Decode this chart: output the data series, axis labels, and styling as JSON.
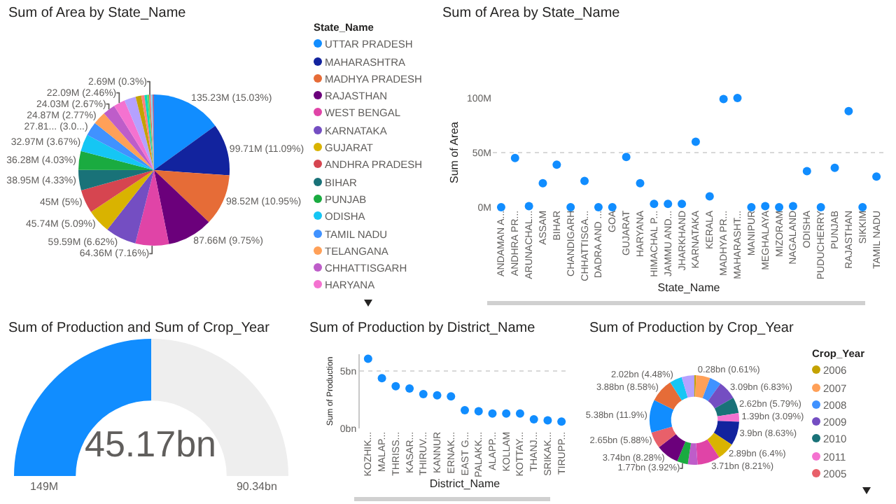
{
  "chart_data": [
    {
      "type": "pie",
      "title": "Sum of Area by State_Name",
      "legend": "right",
      "legend_title": "State_Name",
      "categories": [
        "UTTAR PRADESH",
        "MAHARASHTRA",
        "MADHYA PRADESH",
        "RAJASTHAN",
        "WEST BENGAL",
        "KARNATAKA",
        "GUJARAT",
        "ANDHRA PRADESH",
        "BIHAR",
        "PUNJAB",
        "ODISHA",
        "TAMIL NADU",
        "TELANGANA",
        "CHHATTISGARH",
        "HARYANA",
        null,
        null,
        null,
        null,
        null,
        null,
        null,
        null
      ],
      "values": [
        15.03,
        11.09,
        10.95,
        9.75,
        7.16,
        6.62,
        5.09,
        5,
        4.33,
        4.03,
        3.67,
        3.0,
        2.77,
        2.67,
        2.46,
        2.46,
        1.22,
        0.67,
        0.56,
        0.44,
        0.3,
        0.39,
        0.34
      ],
      "value_labels": [
        "135.23M (15.03%)",
        "99.71M (11.09%)",
        "98.52M (10.95%)",
        "87.66M (9.75%)",
        "64.36M (7.16%)",
        "59.59M (6.62%)",
        "45.74M (5.09%)",
        "45M (5%)",
        "38.95M (4.33%)",
        "36.28M (4.03%)",
        "32.97M (3.67%)",
        "27.81... (3.0...)",
        "24.87M (2.77%)",
        "24.03M (2.67%)",
        "22.09M (2.46%)",
        null,
        null,
        null,
        null,
        null,
        "2.69M (0.3%)",
        null,
        null
      ],
      "colors": [
        "#118dff",
        "#12239e",
        "#e66c37",
        "#6b007b",
        "#e044a7",
        "#744ec2",
        "#d9b300",
        "#d64550",
        "#197278",
        "#1aab40",
        "#15c6f4",
        "#4092ff",
        "#ffa058",
        "#be5dc9",
        "#f472d0",
        "#b5a1ff",
        "#c4a200",
        "#ff8080",
        "#00dbbc",
        "#5bd667",
        "#fd625e",
        "#8ad4eb",
        "#a66999"
      ]
    },
    {
      "type": "scatter",
      "title": "Sum of Area by State_Name",
      "xlabel": "State_Name",
      "ylabel": "Sum of Area",
      "color": "#118dff",
      "marker": "circle",
      "grid": "y",
      "categories": [
        "ANDAMAN A...",
        "ANDHRA PR...",
        "ARUNACHAL...",
        "ASSAM",
        "BIHAR",
        "CHANDIGARH",
        "CHHATTISGA...",
        "DADRA AND ...",
        "GOA",
        "GUJARAT",
        "HARYANA",
        "HIMACHAL P...",
        "JAMMU AND...",
        "JHARKHAND",
        "KARNATAKA",
        "KERALA",
        "MADHYA PR...",
        "MAHARASHT...",
        "MANIPUR",
        "MEGHALAYA",
        "MIZORAM",
        "NAGALAND",
        "ODISHA",
        "PUDUCHERRY",
        "PUNJAB",
        "RAJASTHAN",
        "SIKKIM",
        "TAMIL NADU"
      ],
      "values": [
        0,
        45,
        1,
        22,
        39,
        0,
        24,
        0,
        0,
        46,
        22,
        3,
        3,
        3,
        60,
        10,
        99,
        100,
        0,
        1,
        0,
        1,
        33,
        0,
        36,
        88,
        0,
        28
      ],
      "ylim": [
        0,
        100
      ],
      "yticks": [
        {
          "value": 0,
          "label": "0M"
        },
        {
          "value": 50,
          "label": "50M"
        },
        {
          "value": 100,
          "label": "100M"
        }
      ]
    },
    {
      "type": "donut",
      "title": "Sum of Production and Sum of Crop_Year",
      "categories": [
        null,
        null
      ],
      "values": [
        45.17,
        45.17
      ],
      "value_labels": [
        "45.17bn",
        null
      ],
      "annotations": [
        "149M",
        "90.34bn"
      ],
      "colors": [
        "#118dff",
        "#eeeeee"
      ]
    },
    {
      "type": "scatter",
      "title": "Sum of Production by District_Name",
      "xlabel": "District_Name",
      "ylabel": "Sum of Production",
      "color": "#118dff",
      "marker": "circle",
      "grid": "y",
      "categories": [
        "KOZHIK...",
        "MALAP...",
        "THRISS...",
        "KASAR...",
        "THIRUV...",
        "KANNUR",
        "ERNAK...",
        "EAST G...",
        "PALAKK...",
        "ALAPP...",
        "KOLLAM",
        "KOTTAY...",
        "THANJ...",
        "SRIKAK...",
        "TIRUPP..."
      ],
      "values": [
        6.1,
        4.4,
        3.7,
        3.5,
        3,
        2.9,
        2.8,
        1.6,
        1.5,
        1.3,
        1.3,
        1.3,
        0.8,
        0.7,
        0.6
      ],
      "ylim": [
        0,
        6.5
      ],
      "yticks": [
        {
          "value": 0,
          "label": "0bn"
        },
        {
          "value": 5,
          "label": "5bn"
        }
      ]
    },
    {
      "type": "donut",
      "title": "Sum of Production by Crop_Year",
      "legend": "right",
      "legend_title": "Crop_Year",
      "categories": [
        "2006",
        "2007",
        "2008",
        "2009",
        "2010",
        "2011",
        null,
        null,
        null,
        null,
        null,
        null,
        "2005",
        null,
        null,
        null,
        null
      ],
      "values": [
        0.61,
        5.1,
        4.2,
        6.83,
        5.79,
        3.09,
        8.63,
        6.4,
        8.21,
        3.5,
        3.92,
        8.28,
        5.88,
        11.9,
        8.58,
        4.48,
        4.6
      ],
      "value_labels": [
        "0.28bn (0.61%)",
        null,
        null,
        "3.09bn (6.83%)",
        "2.62bn (5.79%)",
        "1.39bn (3.09%)",
        "3.9bn (8.63%)",
        "2.89bn (6.4%)",
        "3.71bn (8.21%)",
        null,
        "1.77bn (3.92%)",
        "3.74bn (8.28%)",
        "2.65bn (5.88%)",
        "5.38bn (11.9%)",
        "3.88bn (8.58%)",
        "2.02bn (4.48%)",
        null
      ],
      "colors": [
        "#c4a200",
        "#ffa058",
        "#4092ff",
        "#744ec2",
        "#197278",
        "#f472d0",
        "#12239e",
        "#d9b300",
        "#e044a7",
        "#be5dc9",
        "#1aab40",
        "#6b007b",
        "#e8606a",
        "#118dff",
        "#e66c37",
        "#15c6f4",
        "#b5a1ff"
      ]
    }
  ]
}
